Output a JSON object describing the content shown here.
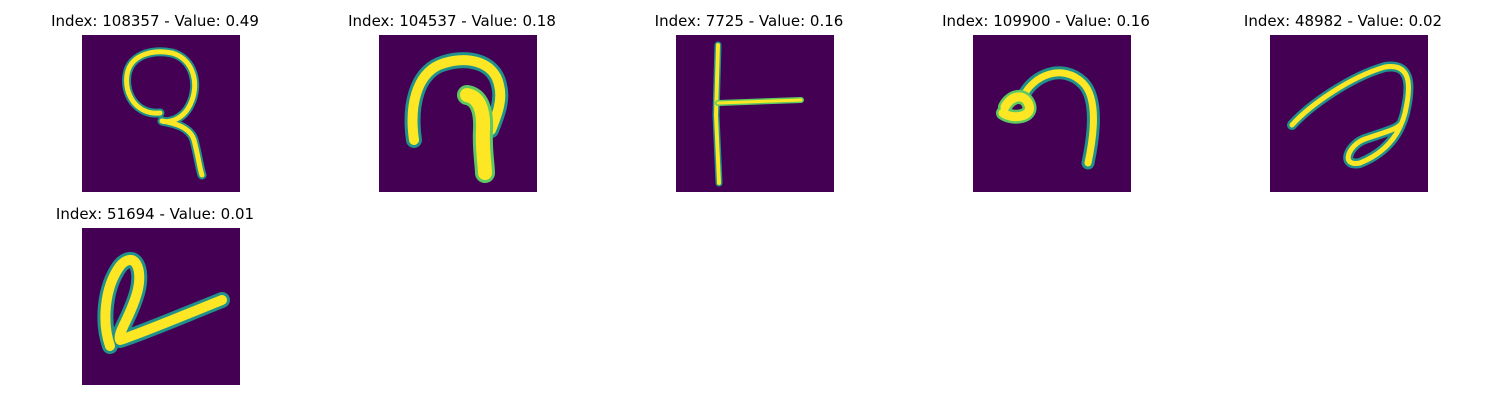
{
  "colors": {
    "background": "#440154",
    "stroke_dark": "#21918c",
    "stroke_mid": "#5ec962",
    "stroke_bright": "#fde725"
  },
  "panels": [
    {
      "title": "Index: 108357 - Value: 0.49",
      "icon": "handwritten-glyph-loop-descender-icon"
    },
    {
      "title": "Index: 104537 - Value: 0.18",
      "icon": "handwritten-glyph-arch-icon"
    },
    {
      "title": "Index: 7725 - Value: 0.16",
      "icon": "handwritten-glyph-t-rotated-icon"
    },
    {
      "title": "Index: 109900 - Value: 0.16",
      "icon": "handwritten-glyph-hook-icon"
    },
    {
      "title": "Index: 48982 - Value: 0.02",
      "icon": "handwritten-glyph-curl-icon"
    },
    {
      "title": "Index: 51694 - Value: 0.01",
      "icon": "handwritten-glyph-loop-tail-icon"
    }
  ]
}
